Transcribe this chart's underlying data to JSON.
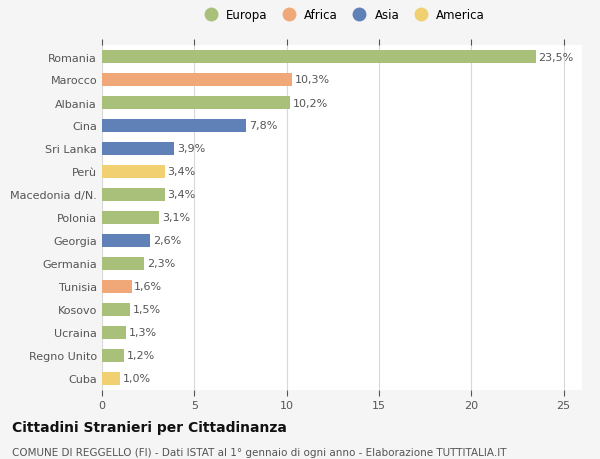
{
  "countries": [
    "Romania",
    "Marocco",
    "Albania",
    "Cina",
    "Sri Lanka",
    "Perù",
    "Macedonia d/N.",
    "Polonia",
    "Georgia",
    "Germania",
    "Tunisia",
    "Kosovo",
    "Ucraina",
    "Regno Unito",
    "Cuba"
  ],
  "values": [
    23.5,
    10.3,
    10.2,
    7.8,
    3.9,
    3.4,
    3.4,
    3.1,
    2.6,
    2.3,
    1.6,
    1.5,
    1.3,
    1.2,
    1.0
  ],
  "labels": [
    "23,5%",
    "10,3%",
    "10,2%",
    "7,8%",
    "3,9%",
    "3,4%",
    "3,4%",
    "3,1%",
    "2,6%",
    "2,3%",
    "1,6%",
    "1,5%",
    "1,3%",
    "1,2%",
    "1,0%"
  ],
  "colors": [
    "#a8c07a",
    "#f0a878",
    "#a8c07a",
    "#6080b8",
    "#6080b8",
    "#f0d070",
    "#a8c07a",
    "#a8c07a",
    "#6080b8",
    "#a8c07a",
    "#f0a878",
    "#a8c07a",
    "#a8c07a",
    "#a8c07a",
    "#f0d070"
  ],
  "legend_labels": [
    "Europa",
    "Africa",
    "Asia",
    "America"
  ],
  "legend_colors": [
    "#a8c07a",
    "#f0a878",
    "#6080b8",
    "#f0d070"
  ],
  "title": "Cittadini Stranieri per Cittadinanza",
  "subtitle": "COMUNE DI REGGELLO (FI) - Dati ISTAT al 1° gennaio di ogni anno - Elaborazione TUTTITALIA.IT",
  "xlim": [
    0,
    26
  ],
  "xticks": [
    0,
    5,
    10,
    15,
    20,
    25
  ],
  "background_color": "#f5f5f5",
  "bar_background": "#ffffff",
  "grid_color": "#d8d8d8",
  "text_color": "#555555",
  "label_fontsize": 8,
  "tick_fontsize": 8,
  "title_fontsize": 10,
  "subtitle_fontsize": 7.5,
  "bar_height": 0.55
}
